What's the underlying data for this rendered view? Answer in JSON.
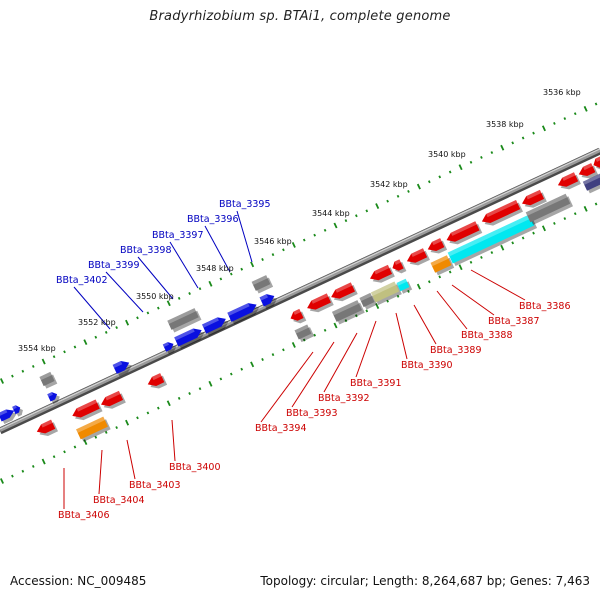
{
  "title": "Bradyrhizobium sp. BTAi1, complete genome",
  "footer": {
    "accession": "Accession: NC_009485",
    "topology": "Topology: circular; Length: 8,264,687 bp; Genes: 7,463"
  },
  "colors": {
    "backbone": "#8a8a8a",
    "tick_dot": "#1a8a1a",
    "forward_gene": "#0a10e0",
    "reverse_gene": "#e00000",
    "grey_gene": "#777777",
    "orange_gene": "#f08a00",
    "cyan_gene": "#00e8f0",
    "khaki_gene": "#c0c080",
    "navy_gene": "#404080",
    "label_blue": "#0000c0",
    "label_red": "#cc0000"
  },
  "kbp_ticks": [
    "3536 kbp",
    "3538 kbp",
    "3540 kbp",
    "3542 kbp",
    "3544 kbp",
    "3546 kbp",
    "3548 kbp",
    "3550 kbp",
    "3552 kbp",
    "3554 kbp"
  ],
  "upper_labels": [
    "BBta_3395",
    "BBta_3396",
    "BBta_3397",
    "BBta_3398",
    "BBta_3399",
    "BBta_3402"
  ],
  "lower_labels": [
    "BBta_3386",
    "BBta_3387",
    "BBta_3388",
    "BBta_3389",
    "BBta_3390",
    "BBta_3391",
    "BBta_3392",
    "BBta_3393",
    "BBta_3394",
    "BBta_3400",
    "BBta_3403",
    "BBta_3404",
    "BBta_3406"
  ]
}
